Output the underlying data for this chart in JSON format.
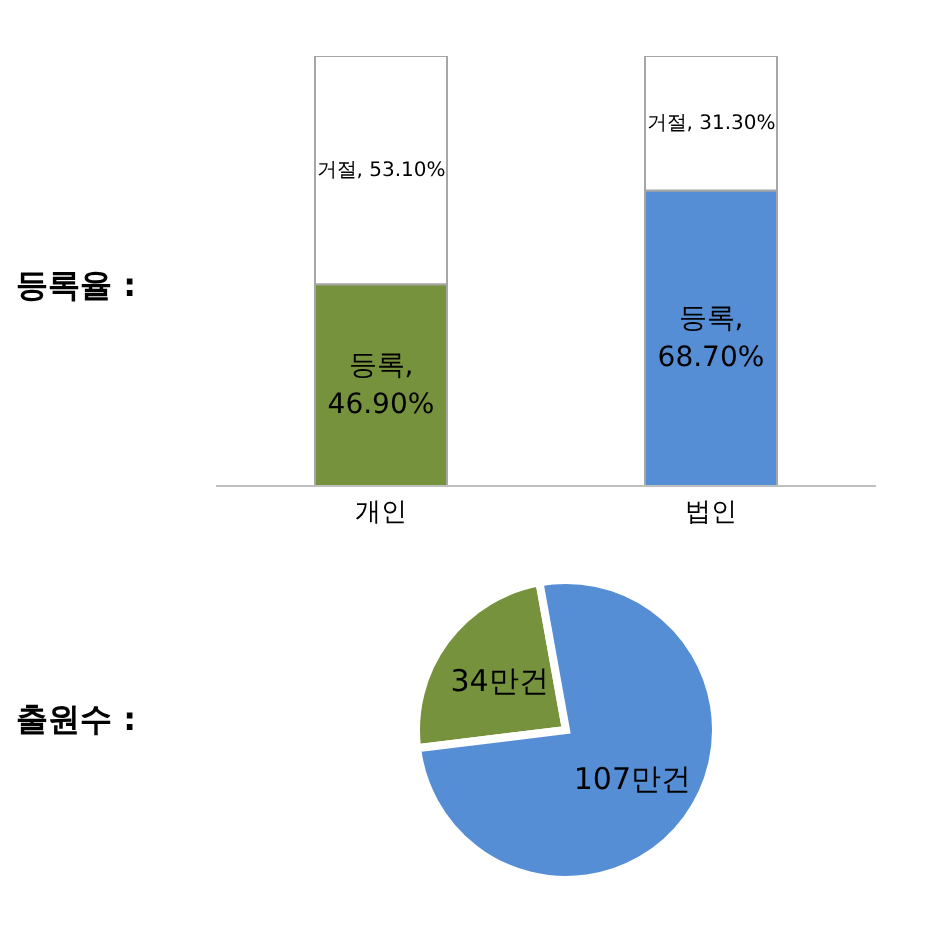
{
  "chart_data": [
    {
      "type": "bar",
      "title": "등록율 :",
      "categories": [
        "개인",
        "법인"
      ],
      "stacked": true,
      "ylim": [
        0,
        100
      ],
      "tick_labels": "x",
      "series": [
        {
          "colors": [
            "#77923c",
            "#558ed5"
          ],
          "values": [
            46.9,
            68.7
          ],
          "value_labels": [
            "등록, 46.90%",
            "등록, 68.70%"
          ]
        },
        {
          "color": "#ffffff",
          "values": [
            53.1,
            31.3
          ],
          "value_labels": [
            "거절, 53.10%",
            "거절, 31.30%"
          ]
        }
      ]
    },
    {
      "type": "pie",
      "title": "출원수 :",
      "categories": [
        null,
        null
      ],
      "values": [
        34,
        107
      ],
      "colors": [
        "#77923c",
        "#558ed5"
      ],
      "value_labels": [
        "34만건",
        "107만건"
      ]
    }
  ]
}
